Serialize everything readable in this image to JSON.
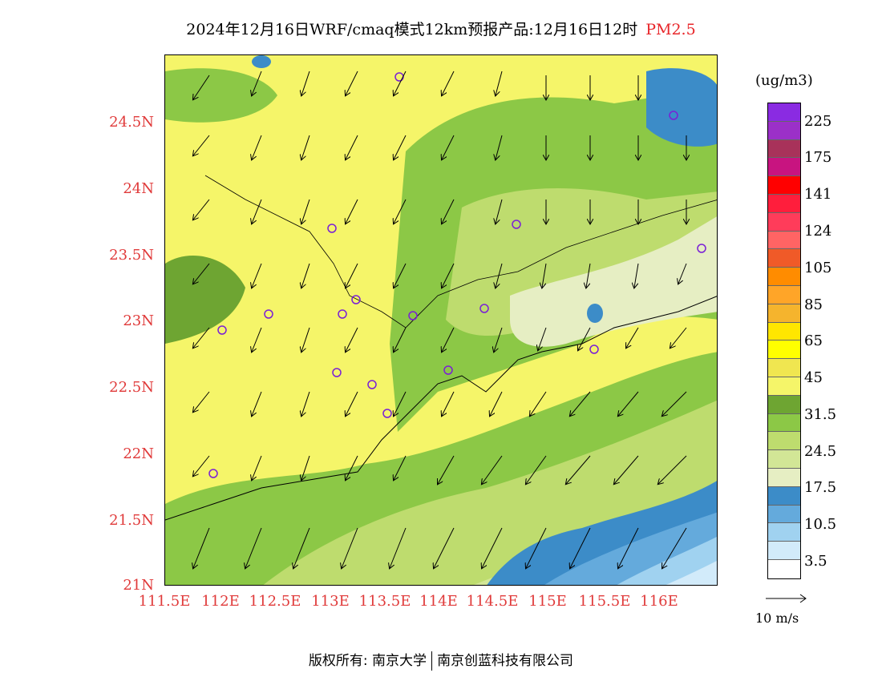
{
  "title": {
    "main": "2024年12月16日WRF/cmaq模式12km预报产品:12月16日12时",
    "pollutant": "PM2.5"
  },
  "axes": {
    "y_labels": [
      "24.5N",
      "24N",
      "23.5N",
      "23N",
      "22.5N",
      "22N",
      "21.5N",
      "21N"
    ],
    "x_labels": [
      "111.5E",
      "112E",
      "112.5E",
      "113E",
      "113.5E",
      "114E",
      "114.5E",
      "115E",
      "115.5E",
      "116E"
    ]
  },
  "legend": {
    "units": "(ug/m3)",
    "labels": [
      "225",
      "175",
      "141",
      "124",
      "105",
      "85",
      "65",
      "45",
      "31.5",
      "24.5",
      "17.5",
      "10.5",
      "3.5"
    ],
    "colors": [
      "#8a2be2",
      "#9b30c8",
      "#a8325a",
      "#c81480",
      "#ff0000",
      "#ff1e3c",
      "#ff3c5a",
      "#ff6464",
      "#f05a28",
      "#ff8c00",
      "#ffa528",
      "#f5b42d",
      "#ffe600",
      "#ffff00",
      "#f0e650",
      "#f5f569",
      "#6ea532",
      "#8cc846",
      "#bedc6e",
      "#d2e696",
      "#e6eec3",
      "#3c8cc8",
      "#64aadc",
      "#a0d2f0",
      "#d2ebfa",
      "#ffffff"
    ]
  },
  "wind_reference": {
    "label": "10 m/s"
  },
  "copyright": {
    "left": "版权所有: 南京大学",
    "right": "南京创蓝科技有限公司"
  },
  "map": {
    "station_marker_color": "#7a1fd6",
    "coast_color": "#000000",
    "arrow_color": "#000000"
  }
}
